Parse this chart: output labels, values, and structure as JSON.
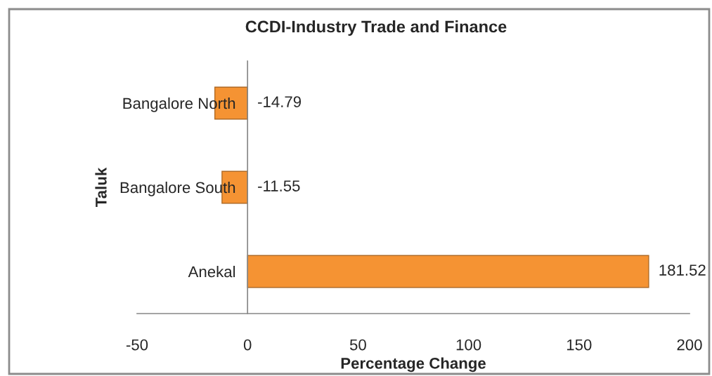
{
  "chart_data": {
    "type": "bar",
    "orientation": "horizontal",
    "title": "CCDI-Industry Trade and Finance",
    "xlabel": "Percentage Change",
    "ylabel": "Taluk",
    "categories": [
      "Bangalore North",
      "Bangalore South",
      "Anekal"
    ],
    "values": [
      -14.79,
      -11.55,
      181.52
    ],
    "color": "#f59333",
    "xlim": [
      -50,
      200
    ],
    "xticks": [
      -50,
      0,
      50,
      100,
      150,
      200
    ],
    "data_labels": true
  }
}
